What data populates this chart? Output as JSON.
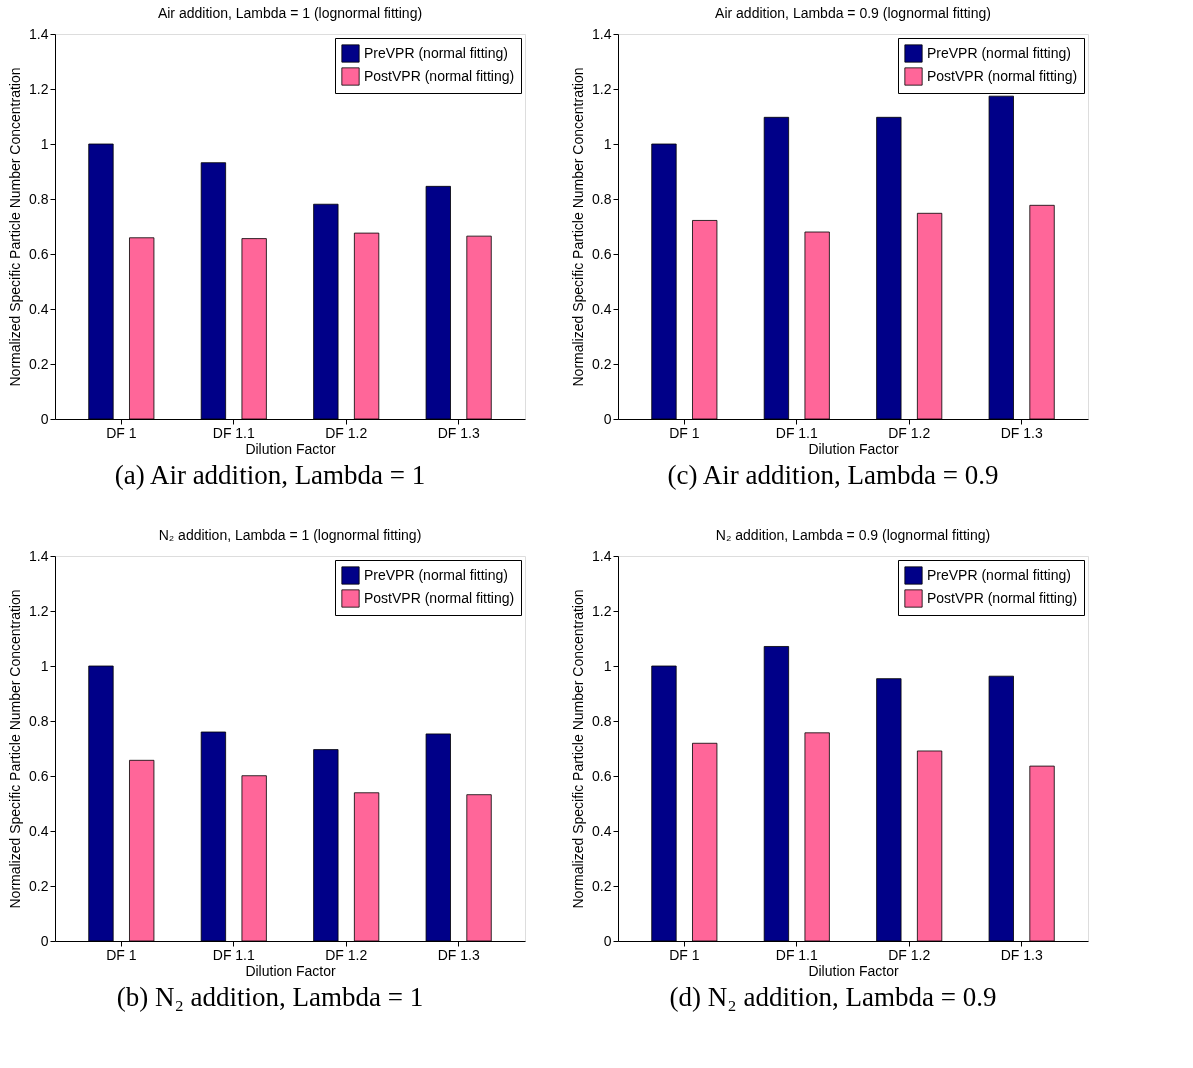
{
  "chart_data": [
    {
      "type": "bar",
      "title": "Air addition, Lambda = 1 (lognormal fitting)",
      "xlabel": "Dilution Factor",
      "ylabel": "Normalized Specific Particle Number Concentration",
      "categories": [
        "DF 1",
        "DF 1.1",
        "DF 1.2",
        "DF 1.3"
      ],
      "series": [
        {
          "name": "PreVPR (normal fitting)",
          "color": "#000088",
          "values": [
            1.0,
            0.932,
            0.781,
            0.846
          ]
        },
        {
          "name": "PostVPR (normal fitting)",
          "color": "#ff6699",
          "values": [
            0.659,
            0.656,
            0.676,
            0.665
          ]
        }
      ],
      "ylim": [
        0,
        1.4
      ],
      "yticks": [
        0,
        0.2,
        0.4,
        0.6,
        0.8,
        1,
        1.2,
        1.4
      ],
      "grid": false,
      "legend": "top right",
      "annotations": [
        "(a) Air addition, Lambda = 1"
      ]
    },
    {
      "type": "bar",
      "title": "Air addition, Lambda = 0.9 (lognormal fitting)",
      "xlabel": "Dilution Factor",
      "ylabel": "Normalized Specific Particle Number Concentration",
      "categories": [
        "DF 1",
        "DF 1.1",
        "DF 1.2",
        "DF 1.3"
      ],
      "series": [
        {
          "name": "PreVPR (normal fitting)",
          "color": "#000088",
          "values": [
            1.0,
            1.097,
            1.097,
            1.174
          ]
        },
        {
          "name": "PostVPR (normal fitting)",
          "color": "#ff6699",
          "values": [
            0.722,
            0.68,
            0.748,
            0.777
          ]
        }
      ],
      "ylim": [
        0,
        1.4
      ],
      "yticks": [
        0,
        0.2,
        0.4,
        0.6,
        0.8,
        1,
        1.2,
        1.4
      ],
      "grid": false,
      "legend": "top right",
      "annotations": [
        "(c) Air addition, Lambda = 0.9"
      ]
    },
    {
      "type": "bar",
      "title": "N₂ addition, Lambda = 1 (lognormal fitting)",
      "xlabel": "Dilution Factor",
      "ylabel": "Normalized Specific Particle Number Concentration",
      "categories": [
        "DF 1",
        "DF 1.1",
        "DF 1.2",
        "DF 1.3"
      ],
      "series": [
        {
          "name": "PreVPR (normal fitting)",
          "color": "#000088",
          "values": [
            1.0,
            0.76,
            0.696,
            0.753
          ]
        },
        {
          "name": "PostVPR (normal fitting)",
          "color": "#ff6699",
          "values": [
            0.657,
            0.601,
            0.539,
            0.532
          ]
        }
      ],
      "ylim": [
        0,
        1.4
      ],
      "yticks": [
        0,
        0.2,
        0.4,
        0.6,
        0.8,
        1,
        1.2,
        1.4
      ],
      "grid": false,
      "legend": "top right",
      "annotations": [
        "(b) N₂ addition, Lambda = 1"
      ]
    },
    {
      "type": "bar",
      "title": "N₂ addition, Lambda = 0.9 (lognormal fitting)",
      "xlabel": "Dilution Factor",
      "ylabel": "Normalized Specific Particle Number Concentration",
      "categories": [
        "DF 1",
        "DF 1.1",
        "DF 1.2",
        "DF 1.3"
      ],
      "series": [
        {
          "name": "PreVPR (normal fitting)",
          "color": "#000088",
          "values": [
            1.0,
            1.071,
            0.954,
            0.963
          ]
        },
        {
          "name": "PostVPR (normal fitting)",
          "color": "#ff6699",
          "values": [
            0.719,
            0.757,
            0.691,
            0.636
          ]
        }
      ],
      "ylim": [
        0,
        1.4
      ],
      "yticks": [
        0,
        0.2,
        0.4,
        0.6,
        0.8,
        1,
        1.2,
        1.4
      ],
      "grid": false,
      "legend": "top right",
      "annotations": [
        "(d) N₂ addition, Lambda = 0.9"
      ]
    }
  ]
}
